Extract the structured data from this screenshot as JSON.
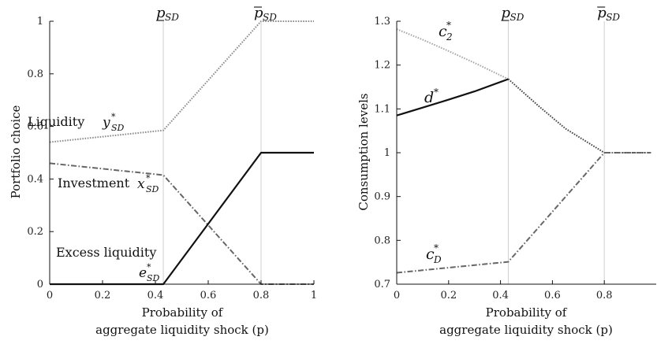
{
  "chart_data": [
    {
      "type": "line",
      "xlabel_lines": [
        "Probability of",
        "aggregate liquidity shock (p)"
      ],
      "ylabel": "Portfolio choice",
      "xlim": [
        0,
        1
      ],
      "ylim": [
        0,
        1
      ],
      "xticks": [
        "0",
        "0.2",
        "0.4",
        "0.6",
        "0.8",
        "1"
      ],
      "yticks": [
        "0",
        "0.2",
        "0.4",
        "0.6",
        "0.8",
        "1"
      ],
      "grid": false,
      "vlines": [
        {
          "x": 0.43,
          "label": "p",
          "sub": "SD",
          "mark": "underbar"
        },
        {
          "x": 0.8,
          "label": "p",
          "sub": "SD",
          "mark": "overbar"
        }
      ],
      "series": [
        {
          "name": "Liquidity y*_SD",
          "style": "dotted",
          "color": "#8c8c8c",
          "x": [
            0,
            0.43,
            0.8,
            1.0
          ],
          "y": [
            0.54,
            0.585,
            1.0,
            1.0
          ]
        },
        {
          "name": "Investment x*_SD",
          "style": "dashdot",
          "color": "#666666",
          "x": [
            0,
            0.43,
            0.8,
            1.0
          ],
          "y": [
            0.46,
            0.415,
            0.0,
            0.0
          ]
        },
        {
          "name": "Excess liquidity e*_SD",
          "style": "solid",
          "color": "#111111",
          "x": [
            0,
            0.43,
            0.8,
            1.0
          ],
          "y": [
            0.0,
            0.0,
            0.5,
            0.5
          ]
        }
      ],
      "annotations": [
        {
          "text": "Liquidity",
          "math": "y",
          "sup": "*",
          "sub": "SD"
        },
        {
          "text": "Investment",
          "math": "x",
          "sup": "*",
          "sub": "SD"
        },
        {
          "text": "Excess liquidity",
          "math": "",
          "sup": "",
          "sub": ""
        },
        {
          "text": "",
          "math": "e",
          "sup": "*",
          "sub": "SD"
        }
      ]
    },
    {
      "type": "line",
      "xlabel_lines": [
        "Probability of",
        "aggregate liquidity shock (p)"
      ],
      "ylabel": "Consumption levels",
      "xlim": [
        0,
        1
      ],
      "ylim": [
        0.7,
        1.3
      ],
      "xticks": [
        "0",
        "0.2",
        "0.4",
        "0.6",
        "0.8"
      ],
      "yticks": [
        "0.7",
        "0.8",
        "0.9",
        "1",
        "1.1",
        "1.2",
        "1.3"
      ],
      "grid": false,
      "vlines": [
        {
          "x": 0.43,
          "label": "p",
          "sub": "SD",
          "mark": "underbar"
        },
        {
          "x": 0.8,
          "label": "p",
          "sub": "SD",
          "mark": "overbar"
        }
      ],
      "series": [
        {
          "name": "c*_2",
          "style": "dotted",
          "color": "#a8a8a8",
          "x": [
            0,
            0.1,
            0.2,
            0.3,
            0.43
          ],
          "y": [
            1.282,
            1.258,
            1.232,
            1.205,
            1.168
          ]
        },
        {
          "name": "d*",
          "style": "solid",
          "color": "#111111",
          "x": [
            0,
            0.1,
            0.2,
            0.3,
            0.43
          ],
          "y": [
            1.085,
            1.103,
            1.121,
            1.14,
            1.168
          ]
        },
        {
          "name": "d* (dotted)",
          "style": "dotted",
          "color": "#444444",
          "x": [
            0.43,
            0.55,
            0.65,
            0.8,
            0.98
          ],
          "y": [
            1.168,
            1.105,
            1.055,
            1.0,
            1.0
          ]
        },
        {
          "name": "c*_D",
          "style": "dashdot",
          "color": "#666666",
          "x": [
            0,
            0.43,
            0.8,
            0.98
          ],
          "y": [
            0.726,
            0.751,
            1.0,
            1.0
          ]
        }
      ],
      "annotations": [
        {
          "text": "",
          "math": "c",
          "sup": "*",
          "sub": "2"
        },
        {
          "text": "",
          "math": "d",
          "sup": "*",
          "sub": ""
        },
        {
          "text": "",
          "math": "c",
          "sup": "*",
          "sub": "D"
        }
      ]
    }
  ]
}
